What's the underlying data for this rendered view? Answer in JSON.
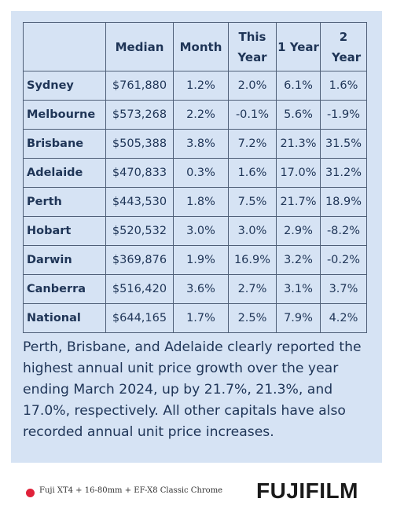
{
  "table": {
    "headers": [
      "",
      "Median",
      "Month",
      "This Year",
      "1 Year",
      "2 Year"
    ],
    "rows": [
      {
        "city": "Sydney",
        "median": "$761,880",
        "month": "1.2%",
        "this_year": "2.0%",
        "one_year": "6.1%",
        "two_year": "1.6%"
      },
      {
        "city": "Melbourne",
        "median": "$573,268",
        "month": "2.2%",
        "this_year": "-0.1%",
        "one_year": "5.6%",
        "two_year": "-1.9%"
      },
      {
        "city": "Brisbane",
        "median": "$505,388",
        "month": "3.8%",
        "this_year": "7.2%",
        "one_year": "21.3%",
        "two_year": "31.5%"
      },
      {
        "city": "Adelaide",
        "median": "$470,833",
        "month": "0.3%",
        "this_year": "1.6%",
        "one_year": "17.0%",
        "two_year": "31.2%"
      },
      {
        "city": "Perth",
        "median": "$443,530",
        "month": "1.8%",
        "this_year": "7.5%",
        "one_year": "21.7%",
        "two_year": "18.9%"
      },
      {
        "city": "Hobart",
        "median": "$520,532",
        "month": "3.0%",
        "this_year": "3.0%",
        "one_year": "2.9%",
        "two_year": "-8.2%"
      },
      {
        "city": "Darwin",
        "median": "$369,876",
        "month": "1.9%",
        "this_year": "16.9%",
        "one_year": "3.2%",
        "two_year": "-0.2%"
      },
      {
        "city": "Canberra",
        "median": "$516,420",
        "month": "3.6%",
        "this_year": "2.7%",
        "one_year": "3.1%",
        "two_year": "3.7%"
      },
      {
        "city": "National",
        "median": "$644,165",
        "month": "1.7%",
        "this_year": "2.5%",
        "one_year": "7.9%",
        "two_year": "4.2%"
      }
    ]
  },
  "caption": "Perth, Brisbane, and Adelaide clearly reported the highest annual unit price growth over the year ending March 2024, up by 21.7%, 21.3%, and 17.0%, respectively. All other capitals have also recorded annual unit price increases.",
  "footer": {
    "camera_info": "Fuji XT4 + 16-80mm + EF-X8 Classic Chrome",
    "brand": "FUJIFILM",
    "dot_color": "#e0223a"
  },
  "colors": {
    "panel_bg": "#d6e3f4",
    "text": "#1f3557",
    "border": "#4f5f78"
  }
}
